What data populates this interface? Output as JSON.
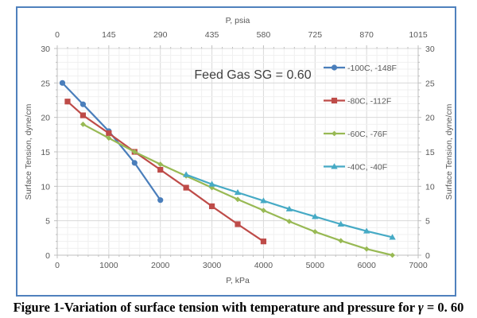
{
  "chart_data": {
    "type": "line",
    "title": "Feed Gas SG = 0.60",
    "xlabel": "P, kPa",
    "x2label": "P, psia",
    "ylabel": "Surface Tension, dyne/cm",
    "y2label": "Surface Tension, dyne/cm",
    "xlim": [
      0,
      7000
    ],
    "ylim": [
      0,
      30
    ],
    "x_ticks": [
      "0",
      "1000",
      "2000",
      "3000",
      "4000",
      "5000",
      "6000",
      "7000"
    ],
    "x2_ticks": [
      "0",
      "145",
      "290",
      "435",
      "580",
      "725",
      "870",
      "1015"
    ],
    "y_ticks": [
      "0",
      "5",
      "10",
      "15",
      "20",
      "25",
      "30"
    ],
    "grid": true,
    "legend_position": "right-inside",
    "series": [
      {
        "name": "-100C, -148F",
        "color": "#4a7ebb",
        "marker": "circle",
        "x": [
          100,
          500,
          1000,
          1500,
          2000
        ],
        "y": [
          25.0,
          21.9,
          18.0,
          13.4,
          8.0
        ]
      },
      {
        "name": "-80C, -112F",
        "color": "#be4b48",
        "marker": "square",
        "x": [
          200,
          500,
          1000,
          1500,
          2000,
          2500,
          3000,
          3500,
          4000
        ],
        "y": [
          22.3,
          20.3,
          17.7,
          15.0,
          12.4,
          9.8,
          7.1,
          4.5,
          2.0
        ]
      },
      {
        "name": "-60C, -76F",
        "color": "#98b954",
        "marker": "diamond",
        "x": [
          500,
          1000,
          1500,
          2000,
          2500,
          3000,
          3500,
          4000,
          4500,
          5000,
          5500,
          6000,
          6500
        ],
        "y": [
          19.0,
          17.0,
          15.0,
          13.2,
          11.5,
          9.8,
          8.1,
          6.5,
          4.9,
          3.4,
          2.1,
          0.9,
          0.0
        ]
      },
      {
        "name": "-40C, -40F",
        "color": "#46aac5",
        "marker": "triangle",
        "x": [
          2500,
          3000,
          3500,
          4000,
          4500,
          5000,
          5500,
          6000,
          6500
        ],
        "y": [
          11.7,
          10.3,
          9.1,
          7.9,
          6.7,
          5.6,
          4.5,
          3.5,
          2.6
        ]
      }
    ]
  },
  "caption": {
    "prefix": "Figure 1-Variation of surface tension with temperature and pressure for ",
    "symbol": "γ",
    "suffix": " = 0. 60"
  }
}
